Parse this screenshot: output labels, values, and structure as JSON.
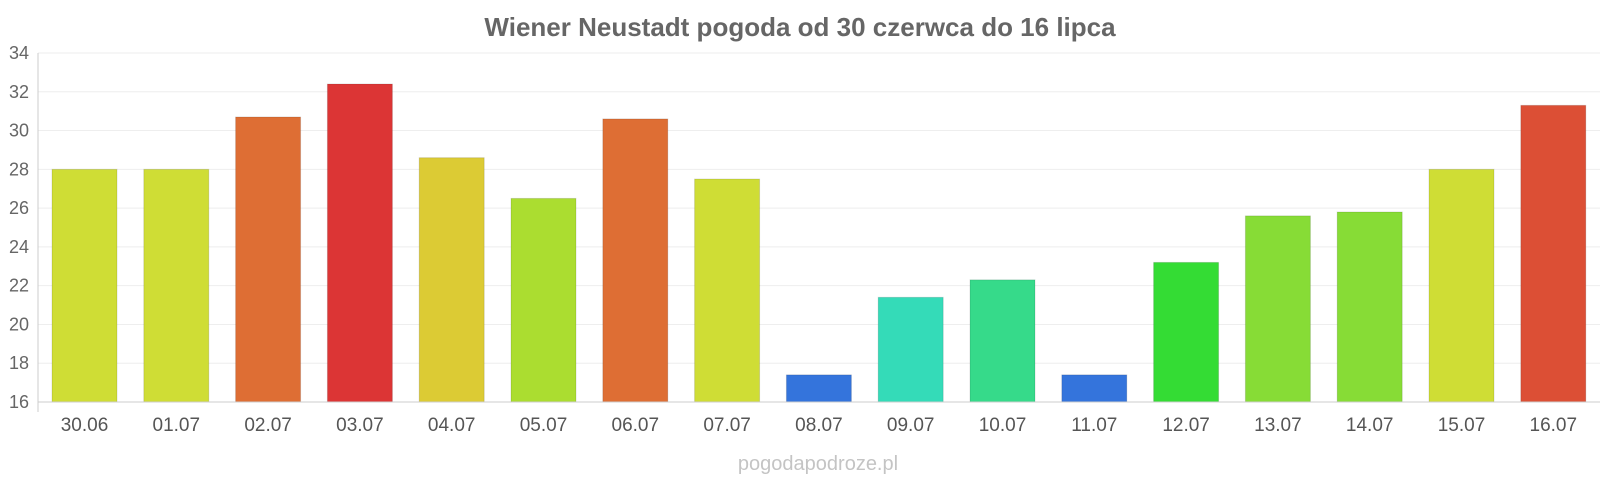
{
  "chart_data": {
    "type": "bar",
    "title": "Wiener Neustadt pogoda od 30 czerwca do 16 lipca",
    "categories": [
      "30.06",
      "01.07",
      "02.07",
      "03.07",
      "04.07",
      "05.07",
      "06.07",
      "07.07",
      "08.07",
      "09.07",
      "10.07",
      "11.07",
      "12.07",
      "13.07",
      "14.07",
      "15.07",
      "16.07"
    ],
    "values": [
      28.0,
      28.0,
      30.7,
      32.4,
      28.6,
      26.5,
      30.6,
      27.5,
      17.4,
      21.4,
      22.3,
      17.4,
      23.2,
      25.6,
      25.8,
      28.0,
      31.3
    ],
    "colors": [
      "#cfdd35",
      "#cfdd35",
      "#de6e34",
      "#dc3535",
      "#dccb34",
      "#abdd30",
      "#de6e34",
      "#cfdd35",
      "#3474dc",
      "#34dbb8",
      "#36da8a",
      "#3474dc",
      "#34dc34",
      "#87dc36",
      "#87dc36",
      "#cfdd35",
      "#dc4f35"
    ],
    "yticks": [
      16,
      18,
      20,
      22,
      24,
      26,
      28,
      30,
      32,
      34
    ],
    "ylim": [
      16,
      34
    ],
    "grid": true,
    "xlabel": "",
    "ylabel": ""
  },
  "watermark": "pogodapodroze.pl"
}
